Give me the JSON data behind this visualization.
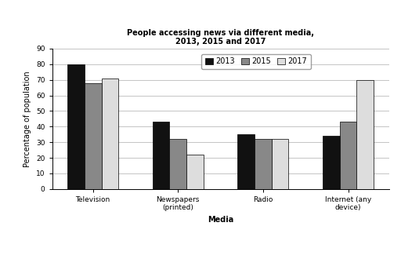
{
  "title": "People accessing news via different media,\n2013, 2015 and 2017",
  "categories": [
    "Television",
    "Newspapers\n(printed)",
    "Radio",
    "Internet (any\ndevice)"
  ],
  "years": [
    "2013",
    "2015",
    "2017"
  ],
  "values": {
    "2013": [
      80,
      43,
      35,
      34
    ],
    "2015": [
      68,
      32,
      32,
      43
    ],
    "2017": [
      71,
      22,
      32,
      70
    ]
  },
  "bar_colors": [
    "#111111",
    "#888888",
    "#dddddd"
  ],
  "bar_edge_colors": [
    "#000000",
    "#000000",
    "#000000"
  ],
  "ylabel": "Percentage of population",
  "xlabel": "Media",
  "ylim": [
    0,
    90
  ],
  "yticks": [
    0,
    10,
    20,
    30,
    40,
    50,
    60,
    70,
    80,
    90
  ],
  "legend_loc": "upper right",
  "background_color": "#ffffff",
  "grid_color": "#bbbbbb",
  "title_fontsize": 7,
  "axis_label_fontsize": 7,
  "tick_fontsize": 6.5,
  "legend_fontsize": 7,
  "bar_width": 0.2
}
